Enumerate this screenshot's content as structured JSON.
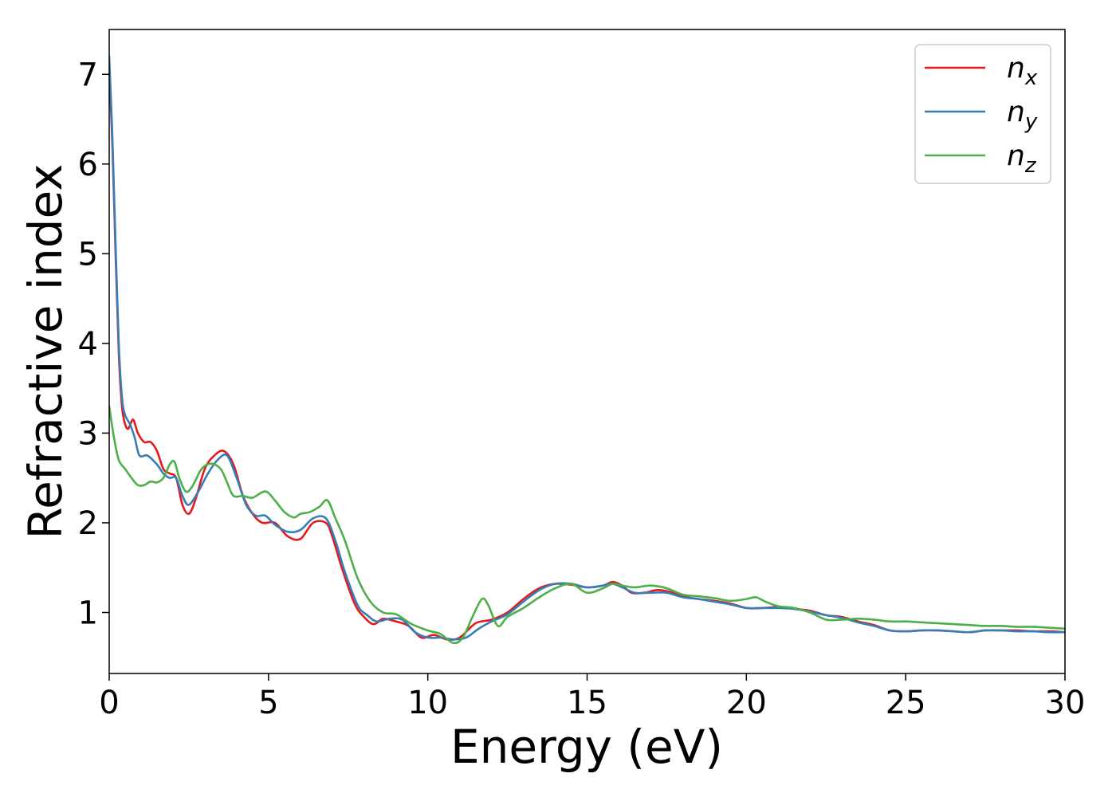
{
  "chart_data": {
    "type": "line",
    "title": "",
    "xlabel": "Energy (eV)",
    "ylabel": "Refractive index",
    "xlim": [
      0,
      30
    ],
    "ylim": [
      0.32,
      7.5
    ],
    "xticks": [
      0,
      5,
      10,
      15,
      20,
      25,
      30
    ],
    "xtick_labels": [
      "0",
      "5",
      "10",
      "15",
      "20",
      "25",
      "30"
    ],
    "yticks": [
      1,
      2,
      3,
      4,
      5,
      6,
      7
    ],
    "ytick_labels": [
      "1",
      "2",
      "3",
      "4",
      "5",
      "6",
      "7"
    ],
    "grid": false,
    "legend_position": "top-right",
    "series": [
      {
        "name": "n_x",
        "label_main": "n",
        "label_sub": "x",
        "color": "#e41a1c",
        "points": [
          [
            0,
            7.1
          ],
          [
            0.1,
            6.2
          ],
          [
            0.2,
            5.0
          ],
          [
            0.3,
            3.9
          ],
          [
            0.4,
            3.3
          ],
          [
            0.5,
            3.1
          ],
          [
            0.6,
            3.05
          ],
          [
            0.75,
            3.15
          ],
          [
            0.9,
            3.0
          ],
          [
            1.1,
            2.9
          ],
          [
            1.3,
            2.9
          ],
          [
            1.5,
            2.8
          ],
          [
            1.7,
            2.6
          ],
          [
            1.9,
            2.55
          ],
          [
            2.1,
            2.5
          ],
          [
            2.3,
            2.2
          ],
          [
            2.5,
            2.1
          ],
          [
            2.7,
            2.25
          ],
          [
            3.0,
            2.6
          ],
          [
            3.3,
            2.75
          ],
          [
            3.6,
            2.8
          ],
          [
            3.9,
            2.65
          ],
          [
            4.2,
            2.3
          ],
          [
            4.5,
            2.1
          ],
          [
            4.8,
            2.0
          ],
          [
            5.2,
            2.0
          ],
          [
            5.6,
            1.85
          ],
          [
            6.0,
            1.82
          ],
          [
            6.4,
            2.0
          ],
          [
            6.8,
            2.0
          ],
          [
            7.0,
            1.85
          ],
          [
            7.3,
            1.5
          ],
          [
            7.7,
            1.1
          ],
          [
            8.0,
            0.95
          ],
          [
            8.3,
            0.87
          ],
          [
            8.6,
            0.93
          ],
          [
            9.0,
            0.9
          ],
          [
            9.4,
            0.85
          ],
          [
            9.8,
            0.72
          ],
          [
            10.2,
            0.75
          ],
          [
            10.6,
            0.7
          ],
          [
            11.0,
            0.72
          ],
          [
            11.5,
            0.88
          ],
          [
            12.0,
            0.92
          ],
          [
            12.5,
            1.0
          ],
          [
            13.0,
            1.15
          ],
          [
            13.5,
            1.27
          ],
          [
            14.0,
            1.32
          ],
          [
            14.5,
            1.31
          ],
          [
            15.0,
            1.28
          ],
          [
            15.5,
            1.3
          ],
          [
            15.8,
            1.34
          ],
          [
            16.1,
            1.3
          ],
          [
            16.4,
            1.22
          ],
          [
            16.8,
            1.22
          ],
          [
            17.2,
            1.25
          ],
          [
            17.6,
            1.23
          ],
          [
            18.0,
            1.18
          ],
          [
            18.5,
            1.15
          ],
          [
            19.0,
            1.13
          ],
          [
            19.5,
            1.1
          ],
          [
            20.0,
            1.05
          ],
          [
            20.5,
            1.05
          ],
          [
            21.0,
            1.06
          ],
          [
            21.5,
            1.04
          ],
          [
            22.0,
            1.02
          ],
          [
            22.5,
            0.97
          ],
          [
            23.0,
            0.95
          ],
          [
            23.5,
            0.9
          ],
          [
            24.0,
            0.86
          ],
          [
            24.5,
            0.8
          ],
          [
            25.0,
            0.79
          ],
          [
            25.5,
            0.8
          ],
          [
            26.0,
            0.8
          ],
          [
            26.5,
            0.79
          ],
          [
            27.0,
            0.78
          ],
          [
            27.5,
            0.8
          ],
          [
            28.0,
            0.8
          ],
          [
            28.5,
            0.8
          ],
          [
            29.0,
            0.79
          ],
          [
            29.5,
            0.79
          ],
          [
            30.0,
            0.78
          ]
        ]
      },
      {
        "name": "n_y",
        "label_main": "n",
        "label_sub": "y",
        "color": "#377eb8",
        "points": [
          [
            0,
            7.2
          ],
          [
            0.1,
            6.3
          ],
          [
            0.2,
            5.1
          ],
          [
            0.3,
            4.0
          ],
          [
            0.4,
            3.4
          ],
          [
            0.5,
            3.2
          ],
          [
            0.65,
            3.1
          ],
          [
            0.8,
            2.95
          ],
          [
            0.95,
            2.75
          ],
          [
            1.2,
            2.75
          ],
          [
            1.5,
            2.65
          ],
          [
            1.7,
            2.55
          ],
          [
            1.9,
            2.5
          ],
          [
            2.1,
            2.5
          ],
          [
            2.3,
            2.3
          ],
          [
            2.5,
            2.2
          ],
          [
            2.8,
            2.35
          ],
          [
            3.1,
            2.55
          ],
          [
            3.4,
            2.7
          ],
          [
            3.7,
            2.75
          ],
          [
            4.0,
            2.5
          ],
          [
            4.3,
            2.2
          ],
          [
            4.6,
            2.08
          ],
          [
            4.9,
            2.08
          ],
          [
            5.2,
            1.98
          ],
          [
            5.6,
            1.9
          ],
          [
            6.0,
            1.92
          ],
          [
            6.4,
            2.05
          ],
          [
            6.8,
            2.05
          ],
          [
            7.1,
            1.8
          ],
          [
            7.4,
            1.45
          ],
          [
            7.8,
            1.08
          ],
          [
            8.1,
            0.97
          ],
          [
            8.4,
            0.9
          ],
          [
            8.8,
            0.93
          ],
          [
            9.2,
            0.92
          ],
          [
            9.6,
            0.78
          ],
          [
            10.0,
            0.72
          ],
          [
            10.4,
            0.72
          ],
          [
            10.8,
            0.7
          ],
          [
            11.2,
            0.72
          ],
          [
            11.6,
            0.82
          ],
          [
            12.0,
            0.9
          ],
          [
            12.5,
            0.98
          ],
          [
            13.0,
            1.12
          ],
          [
            13.5,
            1.25
          ],
          [
            14.0,
            1.32
          ],
          [
            14.5,
            1.32
          ],
          [
            15.0,
            1.28
          ],
          [
            15.5,
            1.3
          ],
          [
            15.8,
            1.32
          ],
          [
            16.1,
            1.28
          ],
          [
            16.5,
            1.22
          ],
          [
            17.0,
            1.22
          ],
          [
            17.5,
            1.22
          ],
          [
            18.0,
            1.17
          ],
          [
            18.5,
            1.15
          ],
          [
            19.0,
            1.12
          ],
          [
            19.5,
            1.09
          ],
          [
            20.0,
            1.05
          ],
          [
            20.5,
            1.05
          ],
          [
            21.0,
            1.05
          ],
          [
            21.5,
            1.04
          ],
          [
            22.0,
            1.01
          ],
          [
            22.5,
            0.97
          ],
          [
            23.0,
            0.94
          ],
          [
            23.5,
            0.89
          ],
          [
            24.0,
            0.85
          ],
          [
            24.5,
            0.8
          ],
          [
            25.0,
            0.79
          ],
          [
            25.5,
            0.8
          ],
          [
            26.0,
            0.8
          ],
          [
            26.5,
            0.79
          ],
          [
            27.0,
            0.78
          ],
          [
            27.5,
            0.8
          ],
          [
            28.0,
            0.8
          ],
          [
            28.5,
            0.79
          ],
          [
            29.0,
            0.79
          ],
          [
            29.5,
            0.78
          ],
          [
            30.0,
            0.78
          ]
        ]
      },
      {
        "name": "n_z",
        "label_main": "n",
        "label_sub": "z",
        "color": "#4daf4a",
        "points": [
          [
            0,
            3.3
          ],
          [
            0.15,
            2.95
          ],
          [
            0.3,
            2.7
          ],
          [
            0.5,
            2.6
          ],
          [
            0.7,
            2.5
          ],
          [
            0.9,
            2.42
          ],
          [
            1.1,
            2.42
          ],
          [
            1.3,
            2.46
          ],
          [
            1.5,
            2.45
          ],
          [
            1.7,
            2.5
          ],
          [
            1.9,
            2.65
          ],
          [
            2.05,
            2.68
          ],
          [
            2.2,
            2.5
          ],
          [
            2.4,
            2.35
          ],
          [
            2.6,
            2.4
          ],
          [
            2.9,
            2.6
          ],
          [
            3.2,
            2.66
          ],
          [
            3.5,
            2.6
          ],
          [
            3.7,
            2.45
          ],
          [
            3.9,
            2.3
          ],
          [
            4.2,
            2.3
          ],
          [
            4.5,
            2.28
          ],
          [
            4.9,
            2.35
          ],
          [
            5.2,
            2.25
          ],
          [
            5.5,
            2.12
          ],
          [
            5.8,
            2.06
          ],
          [
            6.0,
            2.1
          ],
          [
            6.3,
            2.12
          ],
          [
            6.6,
            2.18
          ],
          [
            6.85,
            2.25
          ],
          [
            7.1,
            2.05
          ],
          [
            7.4,
            1.8
          ],
          [
            7.8,
            1.38
          ],
          [
            8.2,
            1.12
          ],
          [
            8.6,
            1.0
          ],
          [
            9.0,
            0.98
          ],
          [
            9.5,
            0.87
          ],
          [
            10.0,
            0.8
          ],
          [
            10.4,
            0.76
          ],
          [
            10.8,
            0.66
          ],
          [
            11.1,
            0.72
          ],
          [
            11.4,
            0.95
          ],
          [
            11.7,
            1.15
          ],
          [
            11.9,
            1.08
          ],
          [
            12.2,
            0.85
          ],
          [
            12.5,
            0.95
          ],
          [
            13.0,
            1.05
          ],
          [
            13.5,
            1.17
          ],
          [
            14.0,
            1.27
          ],
          [
            14.5,
            1.32
          ],
          [
            15.0,
            1.22
          ],
          [
            15.5,
            1.27
          ],
          [
            15.8,
            1.32
          ],
          [
            16.1,
            1.3
          ],
          [
            16.5,
            1.28
          ],
          [
            17.0,
            1.3
          ],
          [
            17.5,
            1.27
          ],
          [
            18.0,
            1.2
          ],
          [
            18.5,
            1.18
          ],
          [
            19.0,
            1.16
          ],
          [
            19.5,
            1.13
          ],
          [
            20.0,
            1.15
          ],
          [
            20.3,
            1.17
          ],
          [
            20.6,
            1.12
          ],
          [
            21.0,
            1.07
          ],
          [
            21.5,
            1.05
          ],
          [
            22.0,
            1.0
          ],
          [
            22.5,
            0.92
          ],
          [
            23.0,
            0.92
          ],
          [
            23.5,
            0.93
          ],
          [
            24.0,
            0.92
          ],
          [
            24.5,
            0.9
          ],
          [
            25.0,
            0.9
          ],
          [
            25.5,
            0.89
          ],
          [
            26.0,
            0.88
          ],
          [
            26.5,
            0.87
          ],
          [
            27.0,
            0.86
          ],
          [
            27.5,
            0.85
          ],
          [
            28.0,
            0.85
          ],
          [
            28.5,
            0.84
          ],
          [
            29.0,
            0.84
          ],
          [
            29.5,
            0.83
          ],
          [
            30.0,
            0.82
          ]
        ]
      }
    ]
  }
}
